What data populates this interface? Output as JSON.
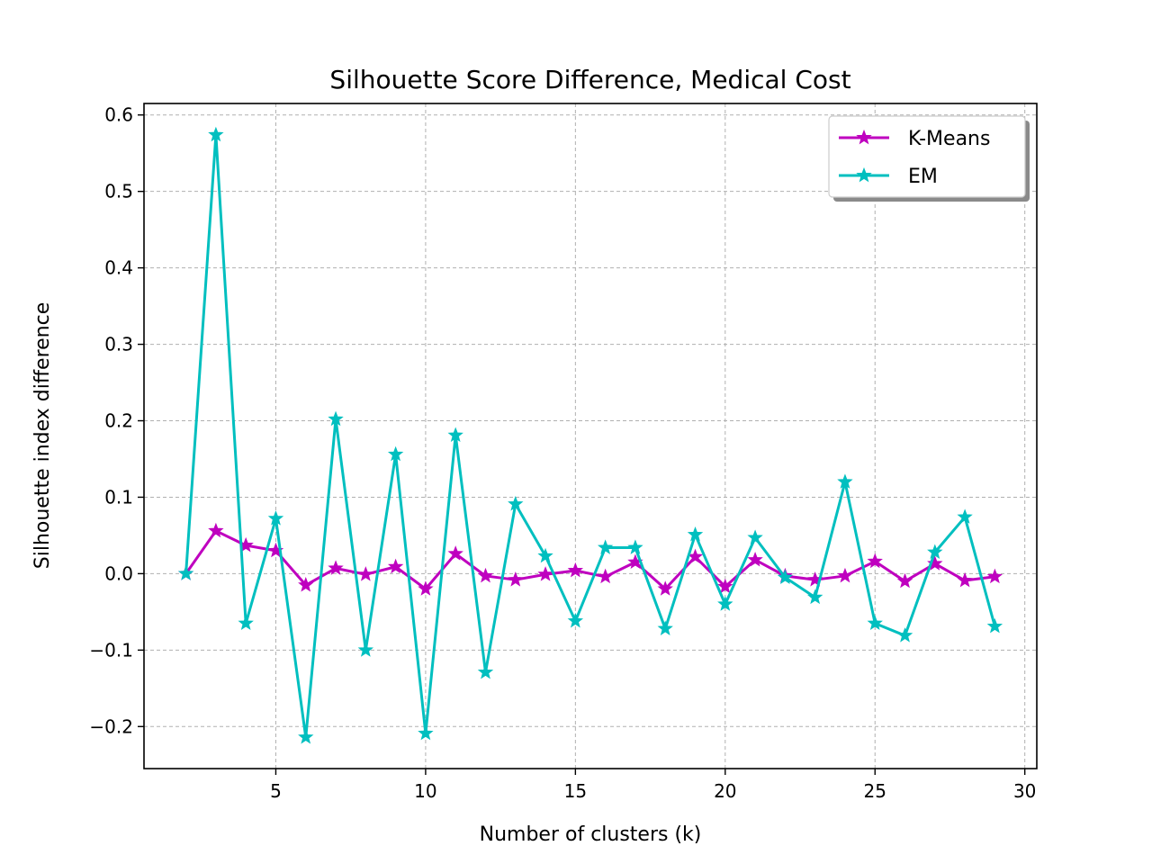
{
  "chart_data": {
    "type": "line",
    "title": "Silhouette Score Difference, Medical Cost",
    "xlabel": "Number of clusters (k)",
    "ylabel": "Silhouette index difference",
    "xlim": [
      0.6,
      30.4
    ],
    "ylim": [
      -0.255,
      0.615
    ],
    "xticks": [
      5,
      10,
      15,
      20,
      25,
      30
    ],
    "yticks": [
      -0.2,
      -0.1,
      0.0,
      0.1,
      0.2,
      0.3,
      0.4,
      0.5,
      0.6
    ],
    "xtick_labels": [
      "5",
      "10",
      "15",
      "20",
      "25",
      "30"
    ],
    "ytick_labels": [
      "−0.2",
      "−0.1",
      "0.0",
      "0.1",
      "0.2",
      "0.3",
      "0.4",
      "0.5",
      "0.6"
    ],
    "grid": true,
    "legend_position": "top-right",
    "x": [
      2,
      3,
      4,
      5,
      6,
      7,
      8,
      9,
      10,
      11,
      12,
      13,
      14,
      15,
      16,
      17,
      18,
      19,
      20,
      21,
      22,
      23,
      24,
      25,
      26,
      27,
      28,
      29
    ],
    "series": [
      {
        "name": "K-Means",
        "color": "#bf00bf",
        "marker": "star",
        "values": [
          0.0,
          0.056,
          0.037,
          0.03,
          -0.015,
          0.007,
          -0.001,
          0.009,
          -0.02,
          0.026,
          -0.003,
          -0.008,
          -0.001,
          0.004,
          -0.004,
          0.015,
          -0.02,
          0.022,
          -0.017,
          0.018,
          -0.003,
          -0.008,
          -0.003,
          0.016,
          -0.01,
          0.013,
          -0.009,
          -0.004
        ]
      },
      {
        "name": "EM",
        "color": "#00bfbf",
        "marker": "star",
        "values": [
          0.0,
          0.574,
          -0.065,
          0.072,
          -0.214,
          0.202,
          -0.1,
          0.156,
          -0.209,
          0.181,
          -0.129,
          0.091,
          0.023,
          -0.062,
          0.034,
          0.034,
          -0.072,
          0.051,
          -0.04,
          0.047,
          -0.005,
          -0.031,
          0.12,
          -0.065,
          -0.081,
          0.028,
          0.074,
          -0.069
        ]
      }
    ]
  }
}
